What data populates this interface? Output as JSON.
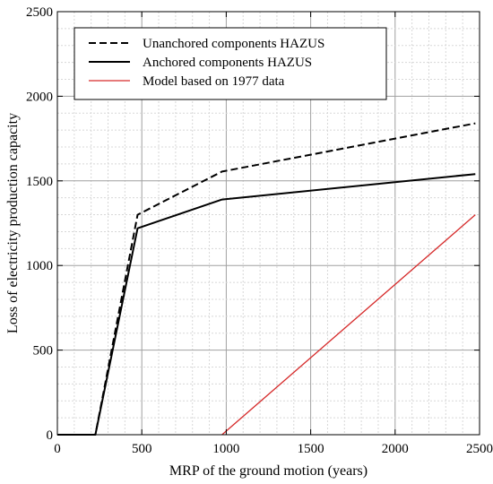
{
  "chart_data": {
    "type": "line",
    "xlabel": "MRP of the ground motion (years)",
    "ylabel": "Loss of electricity production capacity",
    "xlim": [
      0,
      2500
    ],
    "ylim": [
      0,
      2500
    ],
    "xticks": [
      0,
      500,
      1000,
      1500,
      2000,
      2500
    ],
    "yticks": [
      0,
      500,
      1000,
      1500,
      2000,
      2500
    ],
    "grid": true,
    "legend_position": "top-left",
    "series": [
      {
        "name": "Unanchored components HAZUS",
        "style": "dashed",
        "color": "#000000",
        "points": [
          [
            0,
            0
          ],
          [
            225,
            0
          ],
          [
            475,
            1300
          ],
          [
            975,
            1555
          ],
          [
            2475,
            1840
          ]
        ]
      },
      {
        "name": "Anchored components HAZUS",
        "style": "solid",
        "color": "#000000",
        "points": [
          [
            0,
            0
          ],
          [
            225,
            0
          ],
          [
            475,
            1220
          ],
          [
            975,
            1390
          ],
          [
            2475,
            1540
          ]
        ]
      },
      {
        "name": "Model based on 1977 data",
        "style": "solid",
        "color": "#d62a2a",
        "points": [
          [
            975,
            0
          ],
          [
            2475,
            1300
          ]
        ]
      }
    ]
  }
}
